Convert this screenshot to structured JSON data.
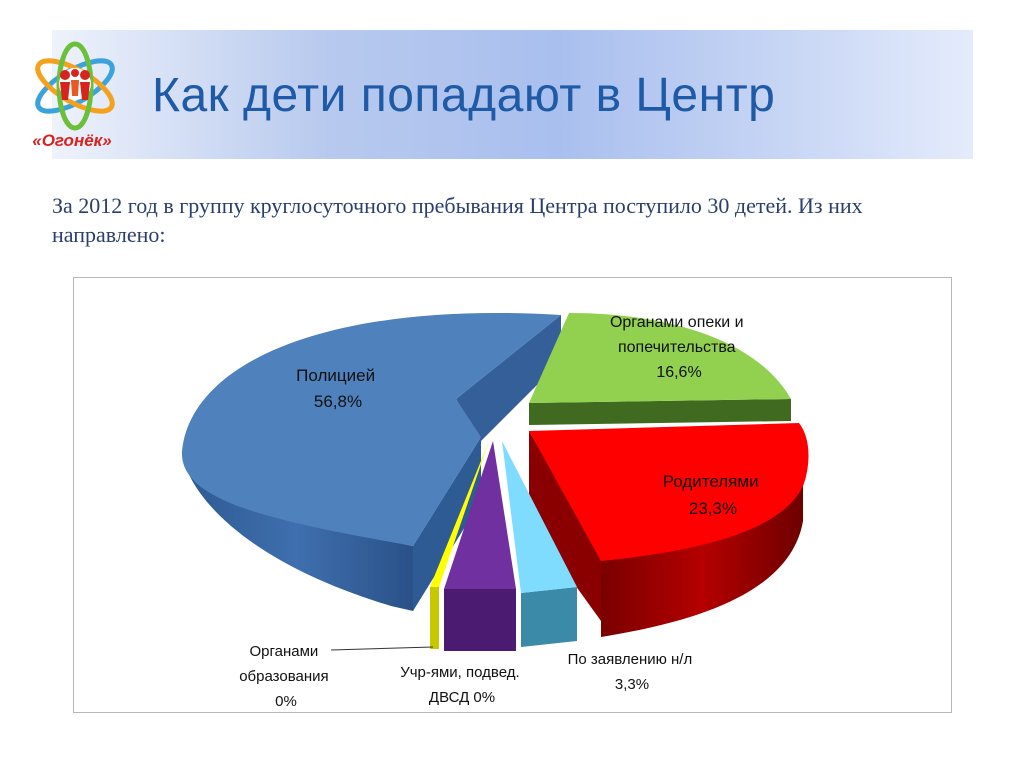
{
  "slide": {
    "title": "Как дети попадают в Центр",
    "intro": "За 2012 год в группу круглосуточного пребывания Центра поступило 30 детей. Из них направлено:",
    "logo_caption": "«Огонёк»"
  },
  "chart_data": {
    "type": "pie",
    "variant": "3d-exploded",
    "slices": [
      {
        "label_lines": [
          "Полицией",
          "56,8%"
        ],
        "value": 56.8,
        "color": "#4f81bd"
      },
      {
        "label_lines": [
          "Органами опеки и",
          "попечительства",
          "16,6%"
        ],
        "value": 16.6,
        "color": "#92d050"
      },
      {
        "label_lines": [
          "Родителями",
          "23,3%"
        ],
        "value": 23.3,
        "color": "#ff0000"
      },
      {
        "label_lines": [
          "По заявлению н/л",
          "3,3%"
        ],
        "value": 3.3,
        "color": "#7fdcff"
      },
      {
        "label_lines": [
          "Учр-ями, подвед.",
          "ДВСД 0%"
        ],
        "value": 0,
        "color": "#7030a0"
      },
      {
        "label_lines": [
          "Органами",
          "образования",
          "0%"
        ],
        "value": 0,
        "color": "#ffff00"
      }
    ]
  }
}
